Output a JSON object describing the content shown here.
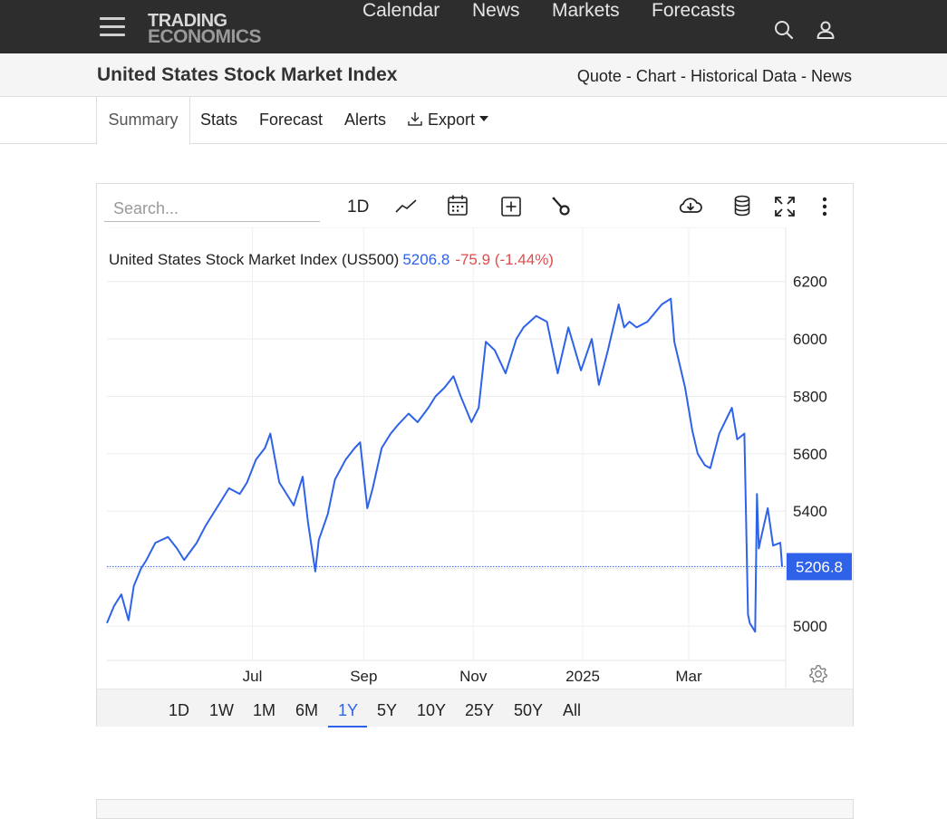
{
  "nav": {
    "logo_line1": "TRADING",
    "logo_line2": "ECONOMICS",
    "links": [
      "Calendar",
      "News",
      "Markets",
      "Forecasts"
    ],
    "icons": [
      "menu-icon",
      "search-icon",
      "user-icon"
    ]
  },
  "title_bar": {
    "title": "United States Stock Market Index",
    "crumbs": [
      "Quote",
      "Chart",
      "Historical Data",
      "News"
    ],
    "separator": "-"
  },
  "tabs": [
    "Summary",
    "Stats",
    "Forecast",
    "Alerts",
    "Export"
  ],
  "toolbar": {
    "search_placeholder": "Search...",
    "interval_label": "1D",
    "icons": [
      "line-chart-icon",
      "calendar-icon",
      "add-icon",
      "wrench-icon",
      "download-cloud-icon",
      "database-icon",
      "fullscreen-icon",
      "more-vertical-icon"
    ]
  },
  "legend": {
    "name": "United States Stock Market Index (US500)",
    "last": "5206.8",
    "change": "-75.9 (-1.44%)"
  },
  "ranges": [
    "1D",
    "1W",
    "1M",
    "6M",
    "1Y",
    "5Y",
    "10Y",
    "25Y",
    "50Y",
    "All"
  ],
  "active_range": "1Y",
  "colors": {
    "line": "#2e62e8",
    "negative": "#e24b4b",
    "nav_bg": "#2d2d2d"
  },
  "chart_data": {
    "type": "line",
    "series": [
      {
        "name": "US500",
        "x": [
          "2024-04-11",
          "2024-04-15",
          "2024-04-19",
          "2024-04-23",
          "2024-04-26",
          "2024-04-30",
          "2024-05-03",
          "2024-05-08",
          "2024-05-15",
          "2024-05-20",
          "2024-05-24",
          "2024-05-31",
          "2024-06-05",
          "2024-06-12",
          "2024-06-18",
          "2024-06-24",
          "2024-06-28",
          "2024-07-03",
          "2024-07-08",
          "2024-07-11",
          "2024-07-16",
          "2024-07-19",
          "2024-07-24",
          "2024-07-29",
          "2024-08-01",
          "2024-08-05",
          "2024-08-07",
          "2024-08-12",
          "2024-08-16",
          "2024-08-22",
          "2024-08-27",
          "2024-08-30",
          "2024-09-03",
          "2024-09-06",
          "2024-09-11",
          "2024-09-16",
          "2024-09-20",
          "2024-09-26",
          "2024-10-01",
          "2024-10-07",
          "2024-10-11",
          "2024-10-16",
          "2024-10-21",
          "2024-10-25",
          "2024-10-31",
          "2024-11-04",
          "2024-11-08",
          "2024-11-13",
          "2024-11-19",
          "2024-11-25",
          "2024-11-29",
          "2024-12-06",
          "2024-12-12",
          "2024-12-18",
          "2024-12-24",
          "2024-12-31",
          "2025-01-06",
          "2025-01-10",
          "2025-01-15",
          "2025-01-21",
          "2025-01-24",
          "2025-01-27",
          "2025-01-31",
          "2025-02-06",
          "2025-02-14",
          "2025-02-19",
          "2025-02-21",
          "2025-02-27",
          "2025-03-03",
          "2025-03-06",
          "2025-03-10",
          "2025-03-13",
          "2025-03-18",
          "2025-03-25",
          "2025-03-28",
          "2025-04-01",
          "2025-04-03",
          "2025-04-04",
          "2025-04-07",
          "2025-04-08",
          "2025-04-09",
          "2025-04-10",
          "2025-04-14",
          "2025-04-17",
          "2025-04-21",
          "2025-04-22"
        ],
        "y": [
          5010,
          5070,
          5110,
          5020,
          5140,
          5200,
          5230,
          5290,
          5310,
          5270,
          5230,
          5290,
          5350,
          5420,
          5480,
          5460,
          5500,
          5580,
          5620,
          5670,
          5500,
          5470,
          5420,
          5520,
          5360,
          5190,
          5300,
          5390,
          5510,
          5580,
          5620,
          5640,
          5410,
          5480,
          5620,
          5670,
          5700,
          5740,
          5710,
          5760,
          5800,
          5830,
          5870,
          5800,
          5710,
          5760,
          5990,
          5960,
          5880,
          6000,
          6040,
          6080,
          6060,
          5880,
          6040,
          5890,
          6000,
          5840,
          5960,
          6120,
          6040,
          6060,
          6040,
          6060,
          6120,
          6140,
          5990,
          5830,
          5680,
          5600,
          5560,
          5550,
          5670,
          5760,
          5650,
          5670,
          5040,
          5010,
          4980,
          5460,
          5270,
          5300,
          5410,
          5280,
          5290,
          5206.8
        ]
      }
    ],
    "y_ticks": [
      5000,
      5400,
      5600,
      5800,
      6000,
      6200
    ],
    "y_ticks_all": [
      5000,
      5200,
      5400,
      5600,
      5800,
      6000,
      6200
    ],
    "ylim": [
      4880,
      6300
    ],
    "x_tick_labels": [
      "Jul",
      "Sep",
      "Nov",
      "2025",
      "Mar"
    ],
    "x_tick_dates": [
      "2024-07-01",
      "2024-09-01",
      "2024-11-01",
      "2025-01-01",
      "2025-03-01"
    ],
    "xlim": [
      "2024-04-11",
      "2025-04-24"
    ],
    "last_value_label": "5206.8",
    "grid": true
  }
}
